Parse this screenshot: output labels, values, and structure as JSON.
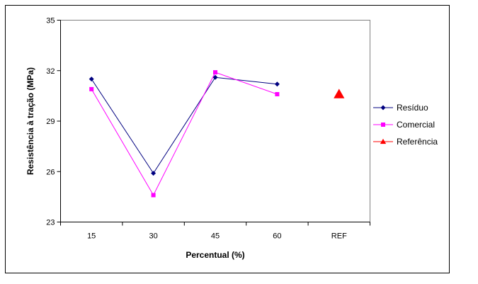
{
  "chart_data": {
    "type": "line",
    "categories": [
      "15",
      "30",
      "45",
      "60",
      "REF"
    ],
    "series": [
      {
        "name": "Resíduo",
        "values": [
          31.5,
          25.9,
          31.6,
          31.2,
          null
        ],
        "color": "#000080",
        "marker": "diamond"
      },
      {
        "name": "Comercial",
        "values": [
          30.9,
          24.6,
          31.9,
          30.6,
          null
        ],
        "color": "#FF00FF",
        "marker": "square"
      },
      {
        "name": "Referência",
        "values": [
          null,
          null,
          null,
          null,
          30.6
        ],
        "color": "#FF0000",
        "marker": "triangle"
      }
    ],
    "title": "",
    "xlabel": "Percentual (%)",
    "ylabel": "Resistência à tração (MPa)",
    "ylim": [
      23,
      35
    ],
    "yticks": [
      23,
      26,
      29,
      32,
      35
    ],
    "grid": false,
    "legend_position": "right"
  }
}
